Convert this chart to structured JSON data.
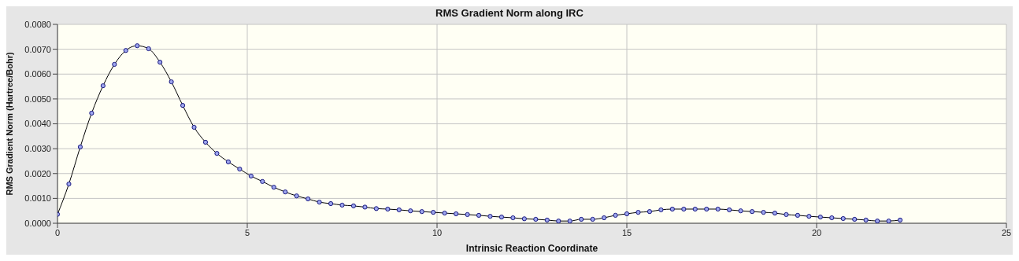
{
  "chart_data": {
    "type": "line",
    "title": "RMS Gradient Norm along IRC",
    "xlabel": "Intrinsic Reaction Coordinate",
    "ylabel": "RMS Gradient Norm (Hartree/Bohr)",
    "x": [
      0,
      0.3,
      0.6,
      0.9,
      1.2,
      1.5,
      1.8,
      2.1,
      2.4,
      2.7,
      3.0,
      3.3,
      3.6,
      3.9,
      4.2,
      4.5,
      4.8,
      5.1,
      5.4,
      5.7,
      6.0,
      6.3,
      6.6,
      6.9,
      7.2,
      7.5,
      7.8,
      8.1,
      8.4,
      8.7,
      9.0,
      9.3,
      9.6,
      9.9,
      10.2,
      10.5,
      10.8,
      11.1,
      11.4,
      11.7,
      12.0,
      12.3,
      12.6,
      12.9,
      13.2,
      13.5,
      13.8,
      14.1,
      14.4,
      14.7,
      15.0,
      15.3,
      15.6,
      15.9,
      16.2,
      16.5,
      16.8,
      17.1,
      17.4,
      17.7,
      18.0,
      18.3,
      18.6,
      18.9,
      19.2,
      19.5,
      19.8,
      20.1,
      20.4,
      20.7,
      21.0,
      21.3,
      21.6,
      21.9,
      22.2
    ],
    "series": [
      {
        "color": "#000000",
        "values": [
          0.00036,
          0.00158,
          0.00307,
          0.00443,
          0.00553,
          0.00639,
          0.00695,
          0.00714,
          0.00702,
          0.00648,
          0.00569,
          0.00474,
          0.00386,
          0.00326,
          0.00281,
          0.00247,
          0.00218,
          0.0019,
          0.00168,
          0.00145,
          0.00126,
          0.0011,
          0.00098,
          0.00085,
          0.00079,
          0.00073,
          0.0007,
          0.00065,
          0.00059,
          0.00057,
          0.00054,
          0.0005,
          0.00047,
          0.00044,
          0.00041,
          0.00038,
          0.00035,
          0.00032,
          0.00028,
          0.00025,
          0.00022,
          0.00018,
          0.00016,
          0.00013,
          9e-05,
          9e-05,
          0.00016,
          0.00016,
          0.00022,
          0.00032,
          0.00038,
          0.00044,
          0.00047,
          0.00054,
          0.00057,
          0.00057,
          0.00057,
          0.00057,
          0.00057,
          0.00054,
          0.0005,
          0.00047,
          0.00044,
          0.00041,
          0.00035,
          0.00032,
          0.00028,
          0.00025,
          0.00022,
          0.00019,
          0.00016,
          0.00013,
          9e-05,
          9e-05,
          0.00013
        ]
      }
    ],
    "xlim": [
      0,
      25
    ],
    "xticks": [
      0,
      5,
      10,
      15,
      20,
      25
    ],
    "ylim": [
      0,
      0.008
    ],
    "yticks": [
      {
        "value": 0,
        "label": "0.0000"
      },
      {
        "value": 0.001,
        "label": "0.0010"
      },
      {
        "value": 0.002,
        "label": "0.0020"
      },
      {
        "value": 0.003,
        "label": "0.0030"
      },
      {
        "value": 0.004,
        "label": "0.0040"
      },
      {
        "value": 0.005,
        "label": "0.0050"
      },
      {
        "value": 0.006,
        "label": "0.0060"
      },
      {
        "value": 0.007,
        "label": "0.0070"
      },
      {
        "value": 0.008,
        "label": "0.0080"
      }
    ],
    "grid": true,
    "marker": "circle",
    "line_style": "solid",
    "legend": false
  }
}
